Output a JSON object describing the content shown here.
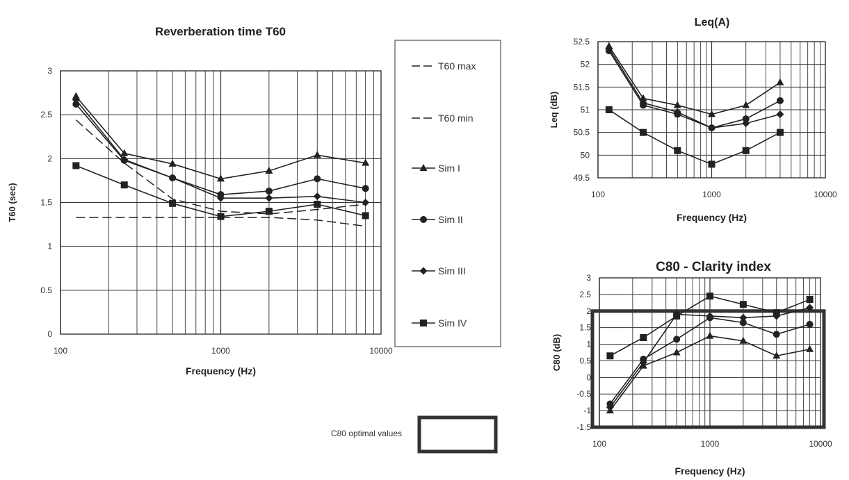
{
  "legend": {
    "entries": [
      "T60 max",
      "T60 min",
      "Sim I",
      "Sim II",
      "Sim III",
      "Sim IV"
    ]
  },
  "c80_optimal_label": "C80 optimal values",
  "chart_data": [
    {
      "id": "t60",
      "type": "line",
      "title": "Reverberation time T60",
      "xlabel": "Frequency (Hz)",
      "ylabel": "T60 (sec)",
      "x_scale": "log",
      "xlim": [
        100,
        10000
      ],
      "ylim": [
        0,
        3
      ],
      "x_ticks": [
        "100",
        "1000",
        "10000"
      ],
      "y_ticks": [
        "0",
        "0.5",
        "1",
        "1.5",
        "2",
        "2.5",
        "3"
      ],
      "grid": true,
      "x": [
        125,
        250,
        500,
        1000,
        2000,
        4000,
        8000
      ],
      "series": [
        {
          "name": "T60 max",
          "style": "dashed",
          "marker": "none",
          "values": [
            2.44,
            1.95,
            1.54,
            1.4,
            1.37,
            1.42,
            1.48
          ]
        },
        {
          "name": "T60 min",
          "style": "dashed",
          "marker": "none",
          "values": [
            1.33,
            1.33,
            1.33,
            1.33,
            1.33,
            1.3,
            1.23
          ]
        },
        {
          "name": "Sim I",
          "style": "solid",
          "marker": "triangle",
          "values": [
            2.71,
            2.06,
            1.94,
            1.77,
            1.86,
            2.04,
            1.95
          ]
        },
        {
          "name": "Sim II",
          "style": "solid",
          "marker": "circle",
          "values": [
            2.62,
            1.98,
            1.78,
            1.59,
            1.63,
            1.77,
            1.66
          ]
        },
        {
          "name": "Sim III",
          "style": "solid",
          "marker": "diamond",
          "values": [
            2.67,
            1.99,
            1.78,
            1.55,
            1.55,
            1.57,
            1.5
          ]
        },
        {
          "name": "Sim IV",
          "style": "solid",
          "marker": "square",
          "values": [
            1.92,
            1.7,
            1.49,
            1.34,
            1.4,
            1.48,
            1.35
          ]
        }
      ]
    },
    {
      "id": "leq",
      "type": "line",
      "title": "Leq(A)",
      "xlabel": "Frequency (Hz)",
      "ylabel": "Leq (dB)",
      "x_scale": "log",
      "xlim": [
        100,
        10000
      ],
      "ylim": [
        49.5,
        52.5
      ],
      "x_ticks": [
        "100",
        "1000",
        "10000"
      ],
      "y_ticks": [
        "49.5",
        "50",
        "50.5",
        "51",
        "51.5",
        "52",
        "52.5"
      ],
      "grid": true,
      "x": [
        125,
        250,
        500,
        1000,
        2000,
        4000
      ],
      "series": [
        {
          "name": "Sim I",
          "style": "solid",
          "marker": "triangle",
          "values": [
            52.4,
            51.25,
            51.1,
            50.9,
            51.1,
            51.6
          ]
        },
        {
          "name": "Sim II",
          "style": "solid",
          "marker": "circle",
          "values": [
            52.3,
            51.1,
            50.9,
            50.6,
            50.8,
            51.2
          ]
        },
        {
          "name": "Sim III",
          "style": "solid",
          "marker": "diamond",
          "values": [
            52.35,
            51.15,
            50.95,
            50.6,
            50.7,
            50.9
          ]
        },
        {
          "name": "Sim IV",
          "style": "solid",
          "marker": "square",
          "values": [
            51.0,
            50.5,
            50.1,
            49.8,
            50.1,
            50.5
          ]
        }
      ]
    },
    {
      "id": "c80",
      "type": "line",
      "title": "C80 - Clarity index",
      "xlabel": "Frequency (Hz)",
      "ylabel": "C80 (dB)",
      "x_scale": "log",
      "xlim": [
        100,
        10000
      ],
      "ylim": [
        -1.5,
        3
      ],
      "x_ticks": [
        "100",
        "1000",
        "10000"
      ],
      "y_ticks": [
        "-1.5",
        "-1",
        "-0.5",
        "0",
        "0.5",
        "1",
        "1.5",
        "2",
        "2.5",
        "3"
      ],
      "grid": true,
      "optimal_band": [
        -1.5,
        2
      ],
      "x": [
        125,
        250,
        500,
        1000,
        2000,
        4000,
        8000
      ],
      "series": [
        {
          "name": "Sim I",
          "style": "solid",
          "marker": "triangle",
          "values": [
            -1.0,
            0.35,
            0.75,
            1.25,
            1.1,
            0.65,
            0.85
          ]
        },
        {
          "name": "Sim II",
          "style": "solid",
          "marker": "circle",
          "values": [
            -0.8,
            0.55,
            1.15,
            1.8,
            1.65,
            1.3,
            1.6
          ]
        },
        {
          "name": "Sim III",
          "style": "solid",
          "marker": "diamond",
          "values": [
            -0.9,
            0.45,
            1.9,
            1.85,
            1.8,
            1.85,
            2.1
          ]
        },
        {
          "name": "Sim IV",
          "style": "solid",
          "marker": "square",
          "values": [
            0.65,
            1.2,
            1.85,
            2.45,
            2.2,
            1.95,
            2.35
          ]
        }
      ]
    }
  ]
}
